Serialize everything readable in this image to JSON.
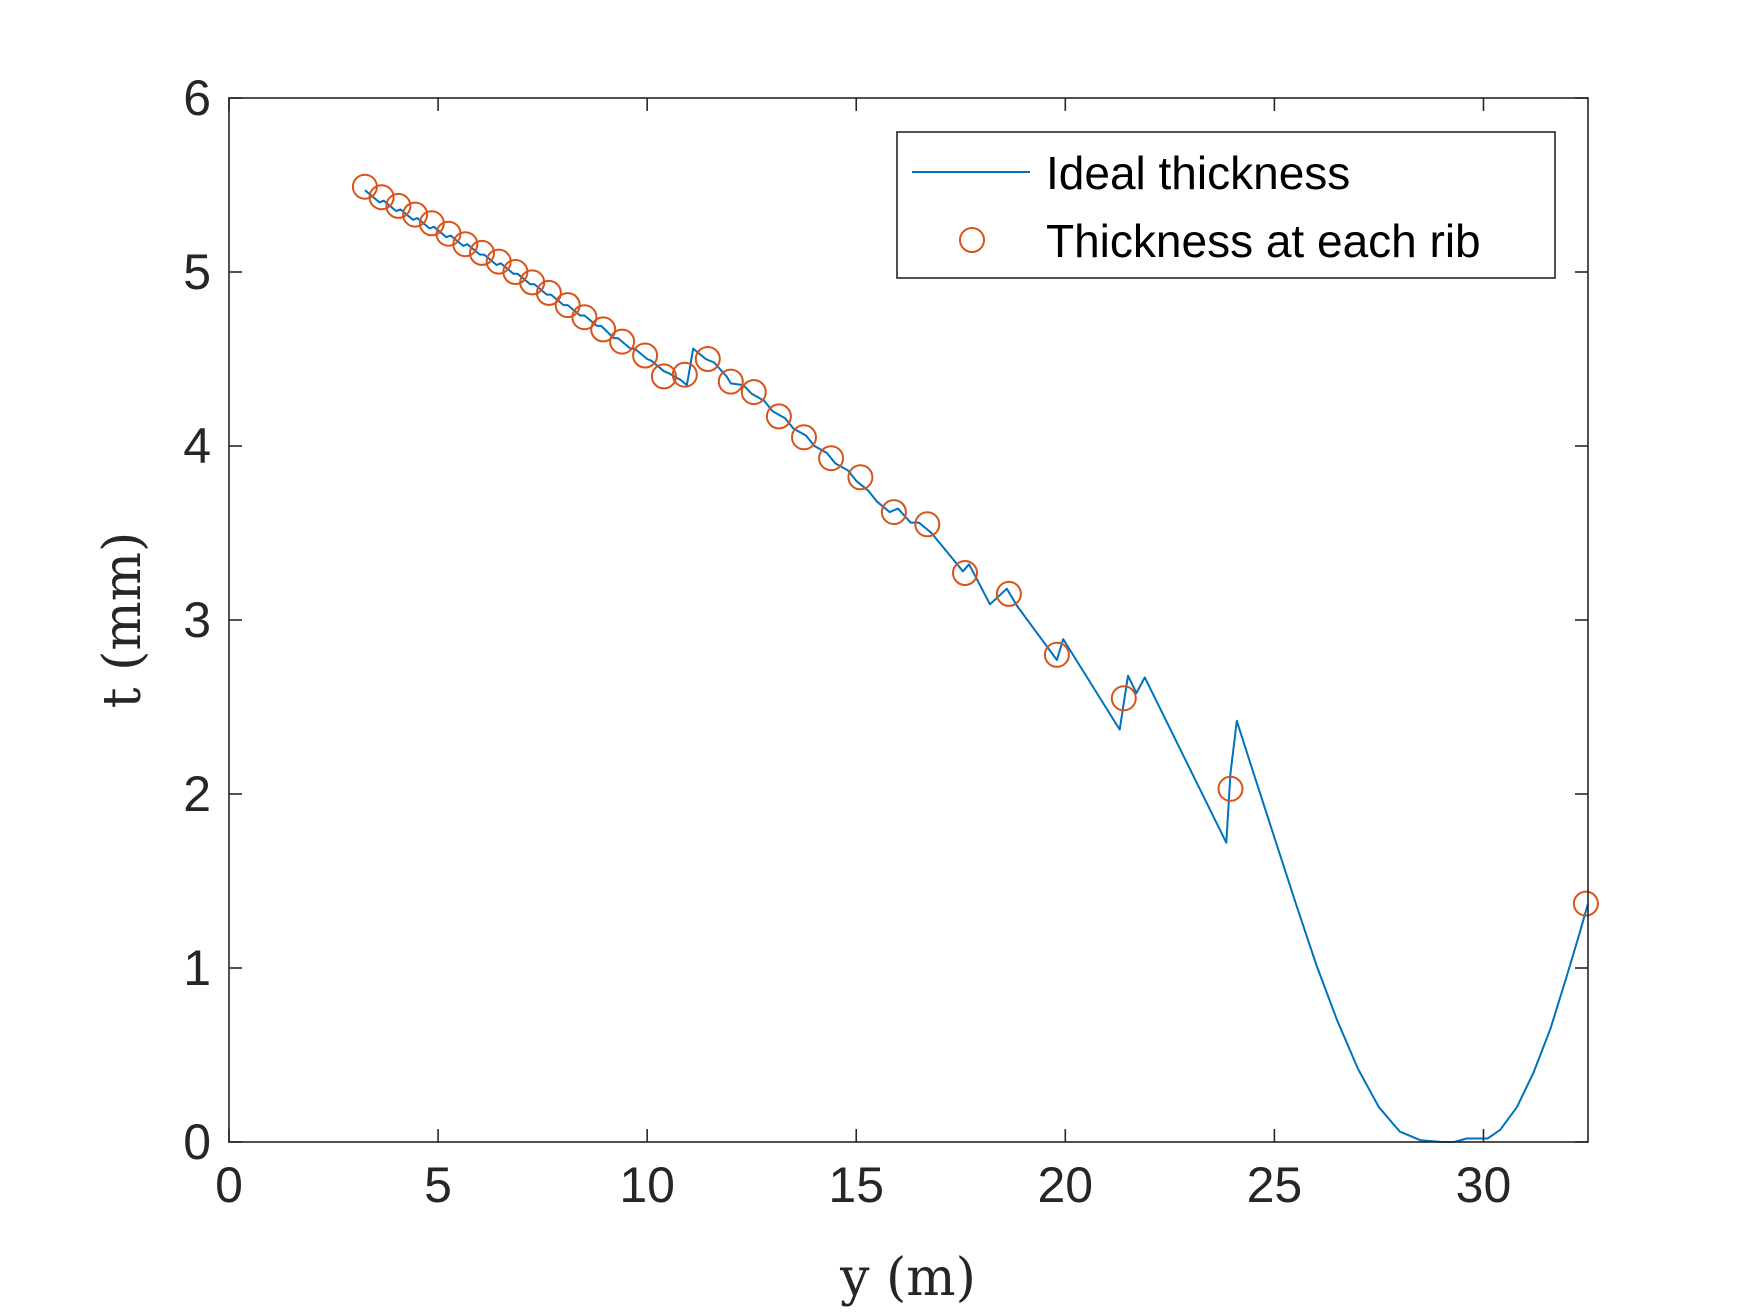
{
  "chart_data": {
    "type": "line",
    "title": "",
    "xlabel": "y (m)",
    "ylabel": "t (mm)",
    "xlim": [
      0,
      32.5
    ],
    "ylim": [
      0,
      6
    ],
    "xticks": [
      0,
      5,
      10,
      15,
      20,
      25,
      30
    ],
    "yticks": [
      0,
      1,
      2,
      3,
      4,
      5,
      6
    ],
    "grid": false,
    "legend_position": "top-right",
    "colors": {
      "ideal": "#0072BD",
      "rib": "#D95319",
      "axis": "#262626"
    },
    "series": [
      {
        "name": "Ideal thickness",
        "style": "line",
        "x": [
          3.25,
          3.6,
          3.7,
          4.0,
          4.1,
          4.4,
          4.5,
          4.8,
          4.9,
          5.2,
          5.3,
          5.6,
          5.7,
          6.0,
          6.1,
          6.4,
          6.5,
          6.8,
          6.9,
          7.2,
          7.3,
          7.6,
          7.7,
          8.0,
          8.1,
          8.4,
          8.5,
          8.8,
          8.9,
          9.2,
          9.3,
          9.6,
          9.7,
          10.0,
          10.1,
          10.4,
          10.5,
          10.8,
          10.95,
          11.1,
          11.4,
          11.6,
          11.9,
          12.0,
          12.3,
          12.5,
          12.8,
          13.0,
          13.3,
          13.5,
          13.8,
          14.0,
          14.3,
          14.5,
          14.8,
          15.0,
          15.3,
          15.5,
          15.8,
          16.0,
          16.3,
          16.5,
          16.8,
          17.55,
          17.7,
          18.2,
          18.6,
          18.85,
          19.8,
          19.95,
          21.3,
          21.5,
          21.7,
          21.9,
          23.85,
          23.95,
          24.1,
          24.5,
          25.0,
          25.5,
          26.0,
          26.5,
          27.0,
          27.5,
          28.0,
          28.5,
          29.0,
          29.3,
          29.6,
          30.1,
          30.4,
          30.8,
          31.2,
          31.6,
          32.0,
          32.3,
          32.5
        ],
        "y": [
          5.47,
          5.4,
          5.41,
          5.35,
          5.36,
          5.3,
          5.31,
          5.25,
          5.26,
          5.2,
          5.21,
          5.15,
          5.16,
          5.1,
          5.1,
          5.04,
          5.05,
          4.99,
          4.99,
          4.93,
          4.93,
          4.87,
          4.87,
          4.81,
          4.81,
          4.75,
          4.75,
          4.69,
          4.69,
          4.62,
          4.62,
          4.56,
          4.56,
          4.5,
          4.49,
          4.43,
          4.42,
          4.38,
          4.35,
          4.56,
          4.5,
          4.48,
          4.4,
          4.36,
          4.35,
          4.3,
          4.26,
          4.2,
          4.16,
          4.1,
          4.06,
          4.0,
          3.96,
          3.9,
          3.86,
          3.8,
          3.74,
          3.68,
          3.62,
          3.64,
          3.56,
          3.56,
          3.5,
          3.28,
          3.32,
          3.09,
          3.18,
          3.08,
          2.77,
          2.89,
          2.37,
          2.68,
          2.58,
          2.67,
          1.72,
          2.12,
          2.42,
          2.12,
          1.75,
          1.38,
          1.02,
          0.7,
          0.42,
          0.2,
          0.06,
          0.01,
          0.0,
          0.0,
          0.02,
          0.02,
          0.07,
          0.2,
          0.4,
          0.65,
          0.96,
          1.2,
          1.37
        ]
      },
      {
        "name": "Thickness at each rib",
        "style": "markers",
        "x": [
          3.25,
          3.65,
          4.05,
          4.45,
          4.85,
          5.25,
          5.65,
          6.05,
          6.45,
          6.85,
          7.25,
          7.65,
          8.1,
          8.5,
          8.95,
          9.4,
          9.95,
          10.4,
          10.9,
          11.45,
          12.0,
          12.55,
          13.15,
          13.75,
          14.4,
          15.1,
          15.9,
          16.7,
          17.6,
          18.65,
          19.8,
          21.4,
          23.95,
          32.45
        ],
        "y": [
          5.49,
          5.43,
          5.38,
          5.33,
          5.28,
          5.22,
          5.16,
          5.11,
          5.06,
          5.0,
          4.94,
          4.88,
          4.81,
          4.74,
          4.67,
          4.6,
          4.52,
          4.4,
          4.41,
          4.5,
          4.37,
          4.31,
          4.17,
          4.05,
          3.93,
          3.82,
          3.62,
          3.55,
          3.27,
          3.15,
          2.8,
          2.55,
          2.03,
          1.37
        ]
      }
    ]
  }
}
